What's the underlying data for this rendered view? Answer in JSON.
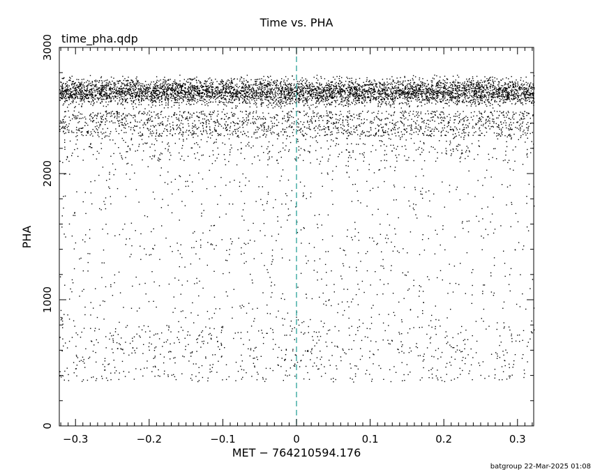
{
  "chart_data": {
    "type": "scatter",
    "title": "Time vs. PHA",
    "subtitle": "time_pha.qdp",
    "xlabel": "MET − 764210594.176",
    "ylabel": "PHA",
    "xlim": [
      -0.322,
      0.322
    ],
    "ylim": [
      0,
      3000
    ],
    "xticks": [
      -0.3,
      -0.2,
      -0.1,
      0,
      0.1,
      0.2,
      0.3
    ],
    "xtick_labels": [
      "−0.3",
      "−0.2",
      "−0.1",
      "0",
      "0.1",
      "0.2",
      "0.3"
    ],
    "yticks": [
      0,
      1000,
      2000,
      3000
    ],
    "ytick_labels": [
      "0",
      "1000",
      "2000",
      "3000"
    ],
    "marker_line": {
      "x": 0,
      "color": "#2aa198",
      "style": "dashed"
    },
    "grid": false,
    "footer": "batgroup 22-Mar-2025 01:08",
    "point_color": "#000000",
    "density_profile": [
      {
        "pha_range": [
          2500,
          2800
        ],
        "relative_density": 1.0
      },
      {
        "pha_range": [
          2300,
          2500
        ],
        "relative_density": 0.45
      },
      {
        "pha_range": [
          2100,
          2300
        ],
        "relative_density": 0.12
      },
      {
        "pha_range": [
          800,
          2100
        ],
        "relative_density": 0.035
      },
      {
        "pha_range": [
          350,
          800
        ],
        "relative_density": 0.09
      }
    ]
  }
}
